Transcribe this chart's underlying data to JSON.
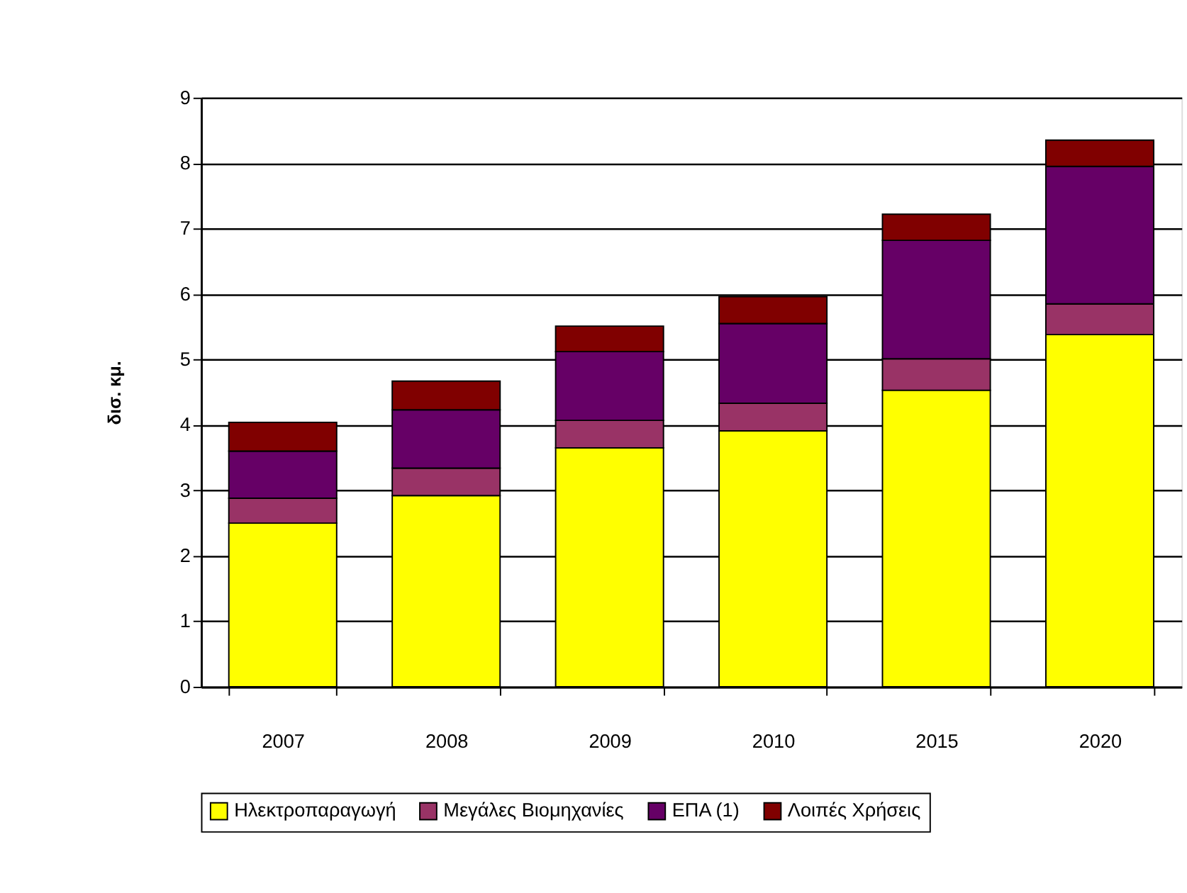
{
  "chart_data": {
    "type": "bar",
    "stacked": true,
    "ylabel": "δισ. κμ.",
    "categories": [
      "2007",
      "2008",
      "2009",
      "2010",
      "2015",
      "2020"
    ],
    "series": [
      {
        "name": "Ηλεκτροπαραγωγή",
        "color": "#ffff00",
        "values": [
          2.5,
          2.92,
          3.65,
          3.91,
          4.53,
          5.38
        ]
      },
      {
        "name": "Μεγάλες Βιομηχανίες",
        "color": "#993366",
        "values": [
          0.38,
          0.42,
          0.42,
          0.42,
          0.48,
          0.47
        ]
      },
      {
        "name": "ΕΠΑ (1)",
        "color": "#660066",
        "values": [
          0.72,
          0.89,
          1.05,
          1.22,
          1.81,
          2.1
        ]
      },
      {
        "name": "Λοιπές Χρήσεις",
        "color": "#800000",
        "values": [
          0.44,
          0.44,
          0.39,
          0.41,
          0.4,
          0.4
        ]
      }
    ],
    "ylim": [
      0,
      9
    ],
    "yticks": [
      0,
      1,
      2,
      3,
      4,
      5,
      6,
      7,
      8,
      9
    ],
    "grid": "y",
    "legend": "bottom"
  }
}
